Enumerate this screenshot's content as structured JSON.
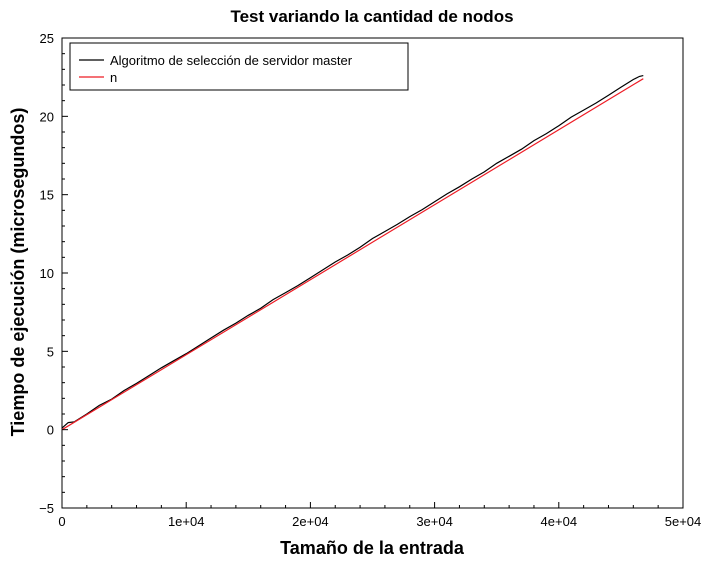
{
  "chart_data": {
    "type": "line",
    "title": "Test variando la cantidad de nodos",
    "xlabel": "Tamaño de la entrada",
    "ylabel": "Tiempo de ejecución (microsegundos)",
    "xlim": [
      0,
      50000
    ],
    "ylim": [
      -5,
      25
    ],
    "x_ticks": [
      0,
      10000,
      20000,
      30000,
      40000,
      50000
    ],
    "x_tick_labels": [
      "0",
      "1e+04",
      "2e+04",
      "3e+04",
      "4e+04",
      "5e+04"
    ],
    "y_ticks": [
      -5,
      0,
      5,
      10,
      15,
      20,
      25
    ],
    "y_tick_labels": [
      "−5",
      "0",
      "5",
      "10",
      "15",
      "20",
      "25"
    ],
    "grid": false,
    "legend_position": "top-left",
    "series": [
      {
        "name": "Algoritmo de selección de servidor master",
        "color": "#000000",
        "x": [
          0,
          500,
          1000,
          2000,
          3000,
          4000,
          5000,
          6000,
          7000,
          8000,
          9000,
          10000,
          11000,
          12000,
          13000,
          14000,
          15000,
          16000,
          17000,
          18000,
          19000,
          20000,
          21000,
          22000,
          23000,
          24000,
          25000,
          26000,
          27000,
          28000,
          29000,
          30000,
          31000,
          32000,
          33000,
          34000,
          35000,
          36000,
          37000,
          38000,
          39000,
          40000,
          41000,
          42000,
          43000,
          44000,
          45000,
          46000,
          46500,
          46800
        ],
        "y": [
          0.1,
          0.45,
          0.5,
          1.0,
          1.55,
          1.95,
          2.5,
          2.95,
          3.45,
          3.95,
          4.4,
          4.85,
          5.35,
          5.85,
          6.35,
          6.8,
          7.3,
          7.75,
          8.3,
          8.75,
          9.2,
          9.7,
          10.2,
          10.7,
          11.15,
          11.65,
          12.2,
          12.65,
          13.1,
          13.6,
          14.05,
          14.55,
          15.05,
          15.5,
          16.0,
          16.45,
          17.0,
          17.45,
          17.9,
          18.45,
          18.9,
          19.4,
          19.95,
          20.4,
          20.85,
          21.35,
          21.85,
          22.35,
          22.55,
          22.6
        ]
      },
      {
        "name": "n",
        "color": "#ee1c25",
        "x": [
          0,
          46800
        ],
        "y": [
          0,
          22.4
        ]
      }
    ]
  }
}
